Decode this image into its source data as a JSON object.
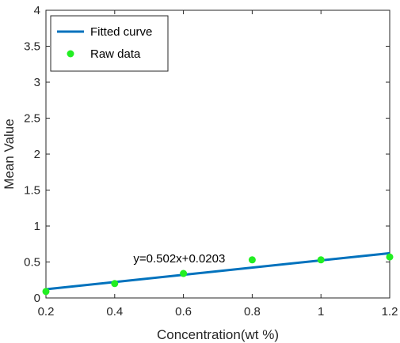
{
  "chart_data": {
    "type": "line",
    "title": "",
    "xlabel": "Concentration(wt %)",
    "ylabel": "Mean Value",
    "xlim": [
      0.2,
      1.2
    ],
    "ylim": [
      0,
      4
    ],
    "xticks": [
      0.2,
      0.4,
      0.6,
      0.8,
      1.0,
      1.2
    ],
    "xtick_labels": [
      "0.2",
      "0.4",
      "0.6",
      "0.8",
      "1",
      "1.2"
    ],
    "yticks": [
      0,
      0.5,
      1,
      1.5,
      2,
      2.5,
      3,
      3.5,
      4
    ],
    "ytick_labels": [
      "0",
      "0.5",
      "1",
      "1.5",
      "2",
      "2.5",
      "3",
      "3.5",
      "4"
    ],
    "grid": false,
    "legend": {
      "position": "top-left"
    },
    "series": [
      {
        "name": "Fitted curve",
        "kind": "line",
        "color": "#0072BD",
        "slope": 0.502,
        "intercept": 0.0203,
        "x": [
          0.2,
          1.2
        ],
        "y": [
          0.1207,
          0.6227
        ]
      },
      {
        "name": "Raw data",
        "kind": "scatter",
        "color": "#22EE22",
        "x": [
          0.2,
          0.4,
          0.6,
          0.8,
          1.0,
          1.2
        ],
        "y": [
          0.09,
          0.2,
          0.34,
          0.53,
          0.53,
          0.57
        ]
      }
    ],
    "annotations": [
      {
        "text": "y=0.502x+0.0203",
        "x": 0.8,
        "y": 0.55
      }
    ]
  }
}
